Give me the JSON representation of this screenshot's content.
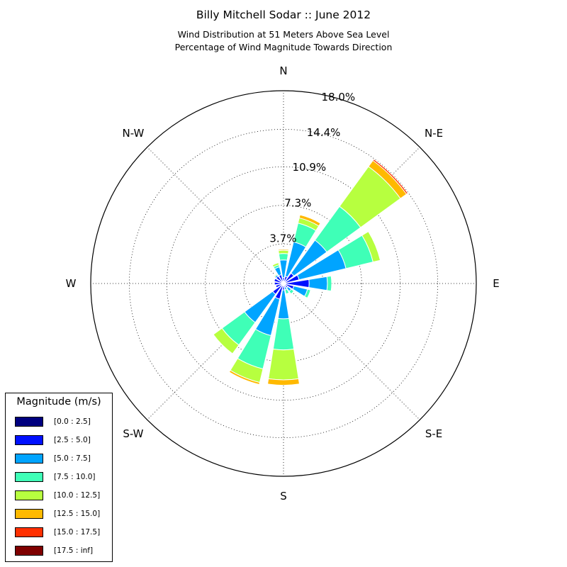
{
  "header": {
    "title": "Billy Mitchell Sodar :: June 2012",
    "subtitle_line1": "Wind Distribution at 51 Meters Above Sea Level",
    "subtitle_line2": "Percentage of Wind Magnitude Towards Direction"
  },
  "chart_data": {
    "type": "windrose",
    "title": "Billy Mitchell Sodar :: June 2012",
    "subtitle": "Wind Distribution at 51 Meters Above Sea Level / Percentage of Wind Magnitude Towards Direction",
    "direction_labels": [
      "N",
      "N-E",
      "E",
      "S-E",
      "S",
      "S-W",
      "W",
      "N-W"
    ],
    "radial_tick_labels": [
      "3.7%",
      "7.3%",
      "10.9%",
      "14.4%",
      "18.0%"
    ],
    "radial_ticks": [
      3.7,
      7.3,
      10.9,
      14.4,
      18.0
    ],
    "rmax": 18.0,
    "grid": true,
    "legend_position": "bottom-left",
    "legend_title": "Magnitude (m/s)",
    "bins": [
      {
        "label": "[0.0 : 2.5]",
        "color": "#00007f"
      },
      {
        "label": "[2.5 : 5.0]",
        "color": "#0010ff"
      },
      {
        "label": "[5.0 : 7.5]",
        "color": "#00a4ff"
      },
      {
        "label": "[7.5 : 10.0]",
        "color": "#3fffb7"
      },
      {
        "label": "[10.0 : 12.5]",
        "color": "#b7ff3f"
      },
      {
        "label": "[12.5 : 15.0]",
        "color": "#ffb900"
      },
      {
        "label": "[15.0 : 17.5]",
        "color": "#ff3000"
      },
      {
        "label": "[17.5 : inf]",
        "color": "#7f0000"
      }
    ],
    "sector_width_deg": 18,
    "directions_deg": [
      0,
      22.5,
      45,
      67.5,
      90,
      112.5,
      135,
      157.5,
      180,
      202.5,
      225,
      247.5,
      270,
      292.5,
      315,
      337.5
    ],
    "cumulative": [
      [
        0.05,
        0.55,
        2.2,
        2.8,
        3.1,
        3.2,
        3.2,
        3.2
      ],
      [
        0.05,
        0.7,
        4.0,
        5.8,
        6.3,
        6.6,
        6.65,
        6.65
      ],
      [
        0.05,
        1.2,
        5.0,
        8.9,
        13.5,
        14.2,
        14.35,
        14.35
      ],
      [
        0.05,
        1.5,
        6.0,
        8.6,
        9.3,
        9.35,
        9.35,
        9.35
      ],
      [
        0.05,
        2.4,
        4.1,
        4.5,
        4.5,
        4.5,
        4.5,
        4.5
      ],
      [
        0.05,
        1.0,
        2.3,
        2.6,
        2.6,
        2.6,
        2.6,
        2.6
      ],
      [
        0.05,
        0.5,
        0.9,
        1.2,
        1.2,
        1.2,
        1.2,
        1.2
      ],
      [
        0.05,
        0.35,
        0.6,
        1.0,
        1.0,
        1.0,
        1.0,
        1.0
      ],
      [
        0.05,
        0.6,
        3.3,
        6.2,
        9.0,
        9.5,
        9.5,
        9.5
      ],
      [
        0.05,
        1.5,
        5.0,
        8.2,
        9.5,
        9.7,
        9.7,
        9.7
      ],
      [
        0.05,
        1.25,
        4.5,
        7.1,
        8.1,
        8.1,
        8.1,
        8.1
      ],
      [
        0.05,
        0.75,
        0.75,
        0.75,
        0.75,
        0.75,
        0.75,
        0.75
      ],
      [
        0.05,
        0.85,
        0.85,
        0.85,
        0.85,
        0.85,
        0.85,
        0.85
      ],
      [
        0.05,
        0.9,
        0.9,
        0.9,
        0.9,
        0.9,
        0.9,
        0.9
      ],
      [
        0.05,
        0.85,
        1.0,
        1.0,
        1.1,
        1.1,
        1.1,
        1.1
      ],
      [
        0.05,
        0.85,
        1.6,
        1.8,
        2.0,
        2.0,
        2.0,
        2.0
      ]
    ]
  }
}
